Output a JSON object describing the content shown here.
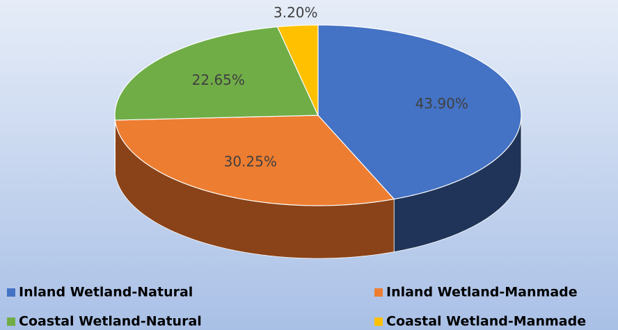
{
  "chart_data": {
    "type": "pie3d",
    "categories": [
      "Inland Wetland-Natural",
      "Inland Wetland-Manmade",
      "Coastal Wetland-Natural",
      "Coastal Wetland-Manmade"
    ],
    "values": [
      43.9,
      30.25,
      22.65,
      3.2
    ],
    "value_labels": [
      "43.90%",
      "30.25%",
      "22.65%",
      "3.20%"
    ],
    "colors": [
      "#4472c4",
      "#ed7d31",
      "#70ad47",
      "#ffc000"
    ],
    "side_colors": [
      "#1f3458",
      "#8a4318",
      "#3f6428",
      "#8a6a00"
    ],
    "legend": "bottom"
  }
}
